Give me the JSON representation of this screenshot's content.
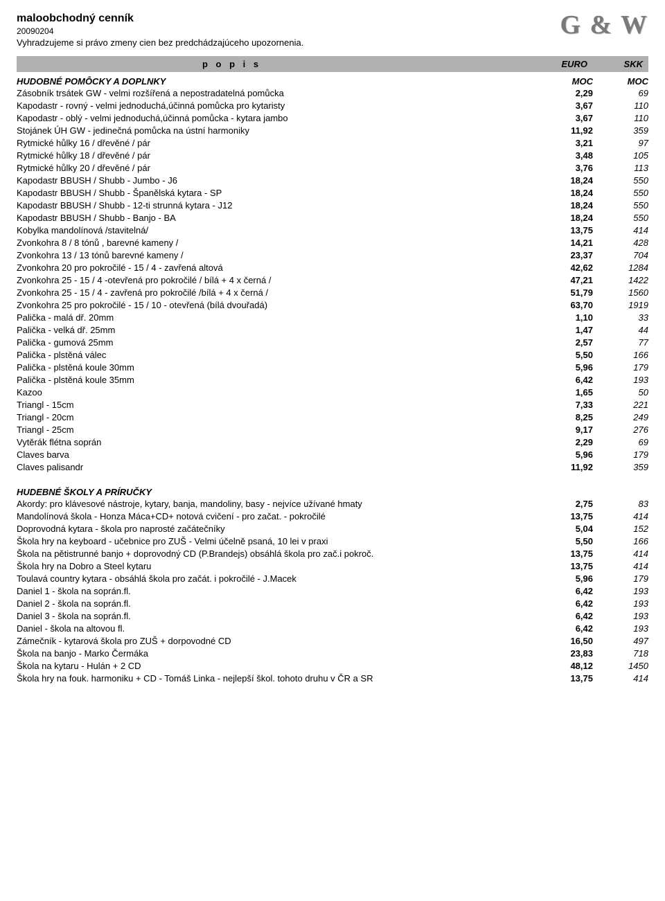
{
  "header": {
    "title": "maloobchodný cenník",
    "date": "20090204",
    "disclaimer": "Vyhradzujeme si právo zmeny cien bez predchádzajúceho upozornenia.",
    "logo": "G & W"
  },
  "columns": {
    "desc": "p o p i s",
    "c1": "EURO",
    "c2": "SKK"
  },
  "sections": [
    {
      "title": "HUDOBNÉ POMÔCKY A DOPLNKY",
      "sub1": "MOC",
      "sub2": "MOC",
      "rows": [
        {
          "d": "Zásobník trsátek GW - velmi rozšířená a nepostradatelná pomůcka",
          "e": "2,29",
          "s": "69"
        },
        {
          "d": "Kapodastr - rovný - velmi jednoduchá,účinná pomůcka pro kytaristy",
          "e": "3,67",
          "s": "110"
        },
        {
          "d": "Kapodastr - oblý - velmi jednoduchá,účinná pomůcka - kytara jambo",
          "e": "3,67",
          "s": "110"
        },
        {
          "d": "Stojánek ÚH GW - jedinečná pomůcka na ústní harmoniky",
          "e": "11,92",
          "s": "359"
        },
        {
          "d": "Rytmické hůlky 16 / dřevěné / pár",
          "e": "3,21",
          "s": "97"
        },
        {
          "d": "Rytmické hůlky 18 / dřevěné / pár",
          "e": "3,48",
          "s": "105"
        },
        {
          "d": "Rytmické hůlky 20 / dřevěné / pár",
          "e": "3,76",
          "s": "113"
        },
        {
          "d": "Kapodastr BBUSH / Shubb - Jumbo - J6",
          "e": "18,24",
          "s": "550"
        },
        {
          "d": "Kapodastr BBUSH / Shubb - Španělská kytara - SP",
          "e": "18,24",
          "s": "550"
        },
        {
          "d": "Kapodastr BBUSH / Shubb - 12-ti strunná kytara - J12",
          "e": "18,24",
          "s": "550"
        },
        {
          "d": "Kapodastr BBUSH / Shubb - Banjo - BA",
          "e": "18,24",
          "s": "550"
        },
        {
          "d": "Kobylka mandolínová   /stavitelná/",
          "e": "13,75",
          "s": "414"
        },
        {
          "d": "Zvonkohra   8 / 8 tónů , barevné kameny /",
          "e": "14,21",
          "s": "428"
        },
        {
          "d": "Zvonkohra 13 / 13 tónů barevné kameny /",
          "e": "23,37",
          "s": "704"
        },
        {
          "d": "Zvonkohra 20 pro pokročilé - 15 / 4 - zavřená altová",
          "e": "42,62",
          "s": "1284"
        },
        {
          "d": "Zvonkohra 25 - 15 / 4 -otevřená pro pokročilé / bílá + 4 x černá /",
          "e": "47,21",
          "s": "1422"
        },
        {
          "d": "Zvonkohra 25 - 15 / 4 - zavřená pro pokročilé /bílá + 4 x černá /",
          "e": "51,79",
          "s": "1560"
        },
        {
          "d": "Zvonkohra 25 pro pokročilé - 15 / 10 - otevřená (bílá dvouřadá)",
          "e": "63,70",
          "s": "1919"
        },
        {
          "d": "Palička - malá dř. 20mm",
          "e": "1,10",
          "s": "33"
        },
        {
          "d": "Palička - velká dř. 25mm",
          "e": "1,47",
          "s": "44"
        },
        {
          "d": "Palička - gumová 25mm",
          "e": "2,57",
          "s": "77"
        },
        {
          "d": "Palička - plstěná  válec",
          "e": "5,50",
          "s": "166"
        },
        {
          "d": "Palička - plstěná koule 30mm",
          "e": "5,96",
          "s": "179"
        },
        {
          "d": "Palička - plstěná koule 35mm",
          "e": "6,42",
          "s": "193"
        },
        {
          "d": "Kazoo",
          "e": "1,65",
          "s": "50"
        },
        {
          "d": "Triangl - 15cm",
          "e": "7,33",
          "s": "221"
        },
        {
          "d": "Triangl - 20cm",
          "e": "8,25",
          "s": "249"
        },
        {
          "d": "Triangl - 25cm",
          "e": "9,17",
          "s": "276"
        },
        {
          "d": "Vytěrák flétna soprán",
          "e": "2,29",
          "s": "69"
        },
        {
          "d": "Claves barva",
          "e": "5,96",
          "s": "179"
        },
        {
          "d": "Claves palisandr",
          "e": "11,92",
          "s": "359"
        }
      ]
    },
    {
      "title": "HUDEBNÉ ŠKOLY A PRÍRUČKY",
      "sub1": "",
      "sub2": "",
      "rows": [
        {
          "d": "Akordy: pro klávesové nástroje, kytary, banja, mandoliny, basy - nejvíce užívané hmaty",
          "e": "2,75",
          "s": "83"
        },
        {
          "d": "Mandolínová škola - Honza Máca+CD+ notová cvičení - pro začat. - pokročilé",
          "e": "13,75",
          "s": "414"
        },
        {
          "d": "Doprovodná kytara - škola pro naprosté začátečníky",
          "e": "5,04",
          "s": "152"
        },
        {
          "d": "Škola hry na keyboard - učebnice pro ZUŠ - Velmi účelně psaná, 10 lei v praxi",
          "e": "5,50",
          "s": "166"
        },
        {
          "d": "Škola na pětistrunné banjo + doprovodný CD (P.Brandejs) obsáhlá škola pro zač.i pokroč.",
          "e": "13,75",
          "s": "414"
        },
        {
          "d": "Škola hry na Dobro a Steel kytaru",
          "e": "13,75",
          "s": "414"
        },
        {
          "d": "Toulavá country kytara - obsáhlá škola pro začát. i pokročilé - J.Macek",
          "e": "5,96",
          "s": "179"
        },
        {
          "d": "Daniel 1 - škola na soprán.fl.",
          "e": "6,42",
          "s": "193"
        },
        {
          "d": "Daniel 2 - škola na soprán.fl.",
          "e": "6,42",
          "s": "193"
        },
        {
          "d": "Daniel 3 - škola na soprán.fl.",
          "e": "6,42",
          "s": "193"
        },
        {
          "d": "Daniel - škola na altovou fl.",
          "e": "6,42",
          "s": "193"
        },
        {
          "d": "Zámečník - kytarová škola pro ZUŠ + dorpovodné CD",
          "e": "16,50",
          "s": "497"
        },
        {
          "d": "Škola na banjo - Marko Čermáka",
          "e": "23,83",
          "s": "718"
        },
        {
          "d": "Škola na kytaru - Hulán + 2 CD",
          "e": "48,12",
          "s": "1450"
        },
        {
          "d": "Škola hry na fouk. harmoniku + CD - Tomáš Linka - nejlepší škol. tohoto druhu v ČR a SR",
          "e": "13,75",
          "s": "414"
        }
      ]
    }
  ]
}
